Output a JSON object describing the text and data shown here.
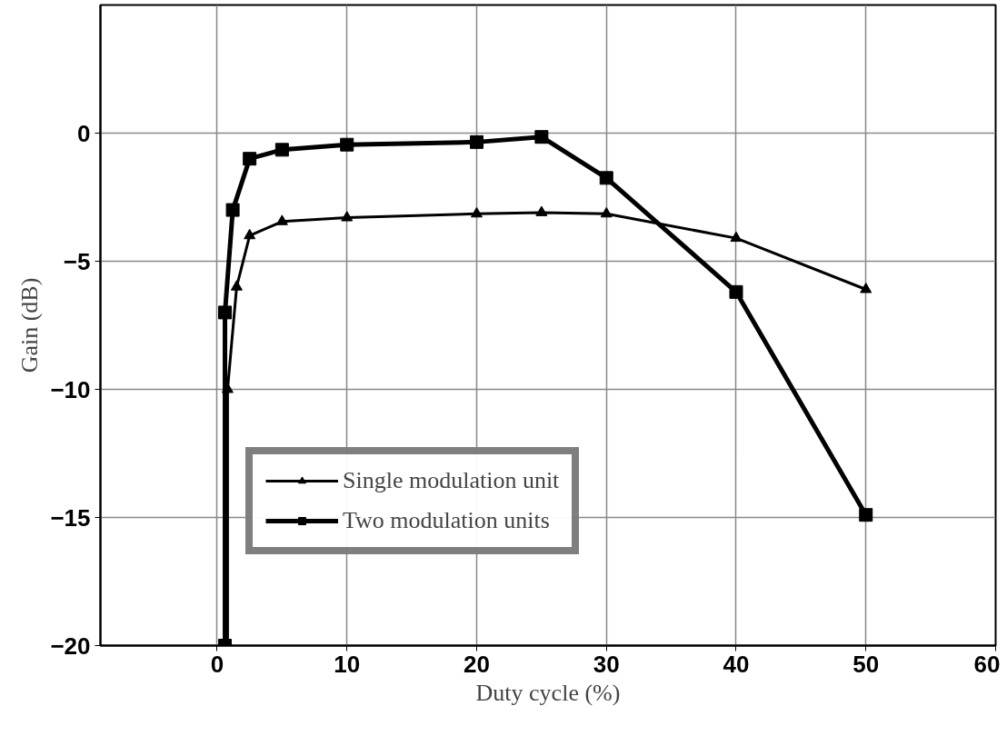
{
  "chart_data": {
    "type": "line",
    "xlabel": "Duty cycle (%)",
    "ylabel": "Gain (dB)",
    "xlim": [
      -9,
      60
    ],
    "xticks": [
      0,
      10,
      20,
      30,
      40,
      50,
      60
    ],
    "ylim": [
      -20,
      5
    ],
    "yticks": [
      -20,
      -15,
      -10,
      -5,
      0
    ],
    "grid": true,
    "legend": "bottom",
    "series": [
      {
        "name": "Single modulation unit",
        "color": "#000000",
        "marker": "triangle",
        "x": [
          0.8,
          0.8,
          1.5,
          2.5,
          5,
          10,
          20,
          25,
          30,
          40,
          50
        ],
        "values": [
          -20,
          -10,
          -6,
          -4,
          -3.45,
          -3.3,
          -3.15,
          -3.1,
          -3.15,
          -4.1,
          -6.1
        ]
      },
      {
        "name": "Two modulation units",
        "color": "#000000",
        "marker": "square",
        "x": [
          0.6,
          0.6,
          1.2,
          2.5,
          5,
          10,
          20,
          25,
          30,
          40,
          50
        ],
        "values": [
          -20,
          -7,
          -3,
          -1,
          -0.65,
          -0.45,
          -0.35,
          -0.15,
          -1.75,
          -6.2,
          -14.9
        ]
      }
    ]
  }
}
